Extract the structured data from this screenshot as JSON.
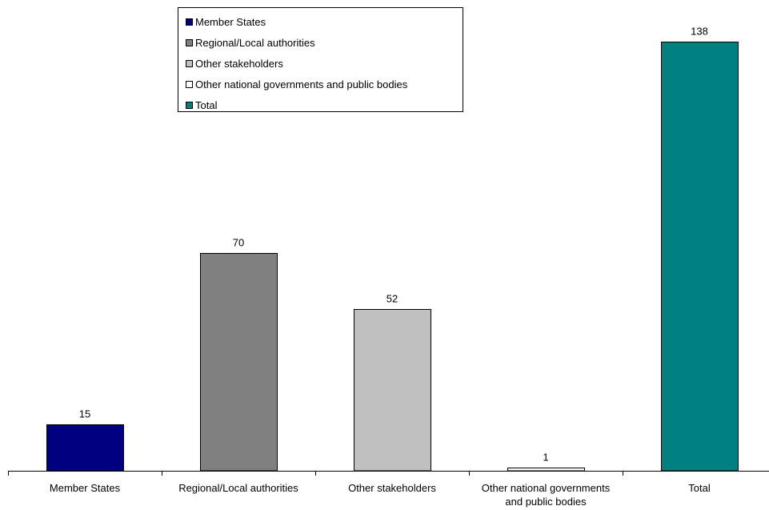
{
  "chart_data": {
    "type": "bar",
    "title": "",
    "xlabel": "",
    "ylabel": "",
    "ylim": [
      0,
      138
    ],
    "grid": false,
    "legend_position": "top-center",
    "categories": [
      "Member States",
      "Regional/Local authorities",
      "Other stakeholders",
      "Other national governments and public bodies",
      "Total"
    ],
    "category_label_lines": [
      [
        "Member States"
      ],
      [
        "Regional/Local authorities"
      ],
      [
        "Other stakeholders"
      ],
      [
        "Other national governments",
        "and public bodies"
      ],
      [
        "Total"
      ]
    ],
    "values": [
      15,
      70,
      52,
      1,
      138
    ],
    "colors": [
      "#000080",
      "#808080",
      "#c0c0c0",
      "#ffffff",
      "#008080"
    ],
    "legend": [
      {
        "label": "Member States",
        "color": "#000080"
      },
      {
        "label": "Regional/Local authorities",
        "color": "#808080"
      },
      {
        "label": "Other stakeholders",
        "color": "#c0c0c0"
      },
      {
        "label": "Other national governments and public bodies",
        "color": "#ffffff"
      },
      {
        "label": "Total",
        "color": "#008080"
      }
    ]
  }
}
